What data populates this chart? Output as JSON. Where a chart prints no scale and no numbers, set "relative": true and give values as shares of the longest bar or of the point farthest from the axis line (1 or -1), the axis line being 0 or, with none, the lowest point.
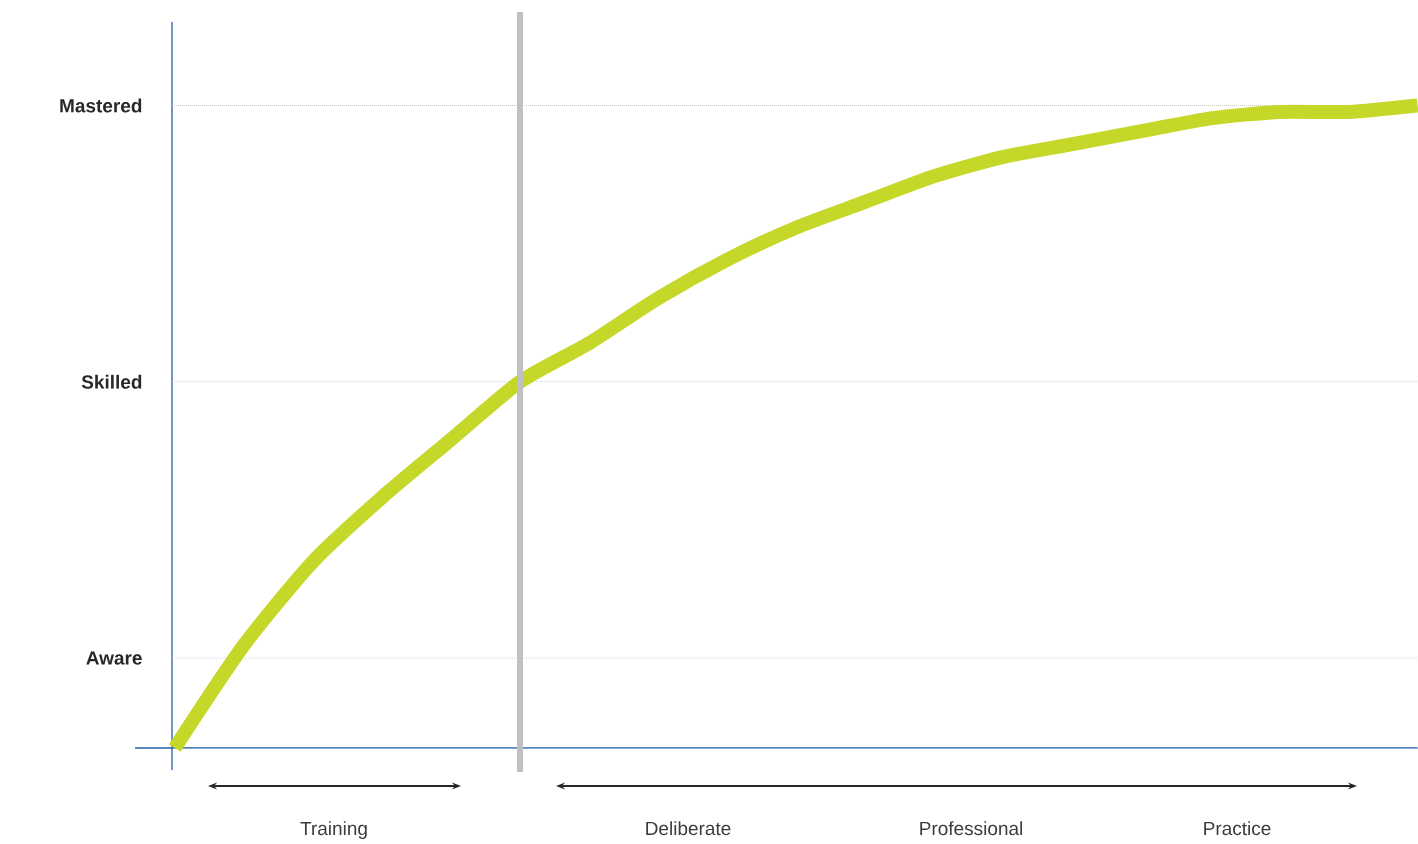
{
  "chart_data": {
    "type": "line",
    "relative": true,
    "categories": [
      null,
      null,
      null,
      null,
      null,
      null,
      null,
      null,
      null,
      null,
      null,
      null,
      null,
      null,
      null,
      null,
      null,
      null,
      null
    ],
    "series": [
      {
        "color": "#c5d82a",
        "values": [
          0,
          0.16,
          0.29,
          0.39,
          0.48,
          0.57,
          0.63,
          0.7,
          0.76,
          0.81,
          0.85,
          0.89,
          0.92,
          0.94,
          0.96,
          0.98,
          0.99,
          0.99,
          1
        ]
      }
    ],
    "marker": "none",
    "line_style": "solid",
    "ref_lines": [
      {
        "axis": "y",
        "value": 0.14,
        "label": "Aware",
        "color": "#c8c8c8",
        "line_style": "dotted"
      },
      {
        "axis": "y",
        "value": 0.57,
        "label": "Skilled",
        "color": "#c8c8c8",
        "line_style": "dotted"
      },
      {
        "axis": "y",
        "value": 1,
        "label": "Mastered",
        "color": "#c8c8c8",
        "line_style": "dotted"
      }
    ],
    "annotations": [
      "Training",
      "Deliberate",
      "Professional",
      "Practice"
    ]
  }
}
